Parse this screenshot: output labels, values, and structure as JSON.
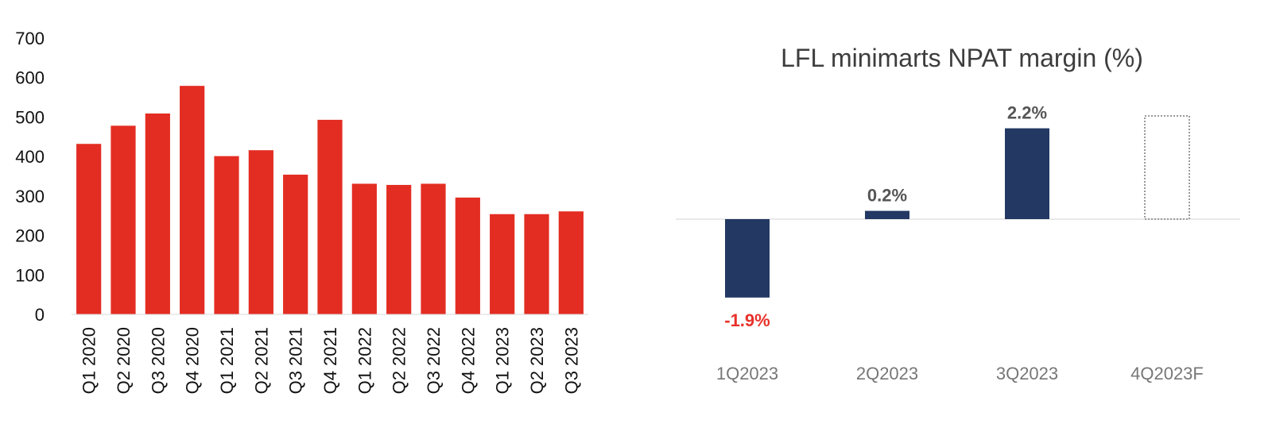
{
  "chart_data": [
    {
      "type": "bar",
      "title": "",
      "xlabel": "",
      "ylabel": "",
      "categories": [
        "Q1 2020",
        "Q2 2020",
        "Q3 2020",
        "Q4 2020",
        "Q1 2021",
        "Q2 2021",
        "Q3 2021",
        "Q4 2021",
        "Q1 2022",
        "Q2 2022",
        "Q3 2022",
        "Q4 2022",
        "Q1 2023",
        "Q2 2023",
        "Q3 2023"
      ],
      "values": [
        432,
        478,
        509,
        579,
        401,
        416,
        354,
        493,
        331,
        328,
        331,
        296,
        254,
        254,
        261
      ],
      "ylim": [
        0,
        700
      ],
      "yticks": [
        0,
        100,
        200,
        300,
        400,
        500,
        600,
        700
      ],
      "grid": false,
      "color": "#e32d22"
    },
    {
      "type": "bar",
      "title": "LFL minimarts NPAT margin (%)",
      "xlabel": "",
      "ylabel": "",
      "categories": [
        "1Q2023",
        "2Q2023",
        "3Q2023",
        "4Q2023F"
      ],
      "values": [
        -1.9,
        0.2,
        2.2,
        null
      ],
      "data_labels": [
        "-1.9%",
        "0.2%",
        "2.2%",
        ""
      ],
      "forecast": {
        "category": "4Q2023F",
        "style": "dotted outline, value not shown",
        "approx_value": 2.5
      },
      "ylim": [
        -2.2,
        2.9
      ],
      "grid": false,
      "colors": {
        "bar": "#233862",
        "negative_label": "#e8312a",
        "positive_label": "#555555",
        "forecast_outline": "#9a9a9a",
        "baseline": "#e2e2e2"
      }
    }
  ]
}
